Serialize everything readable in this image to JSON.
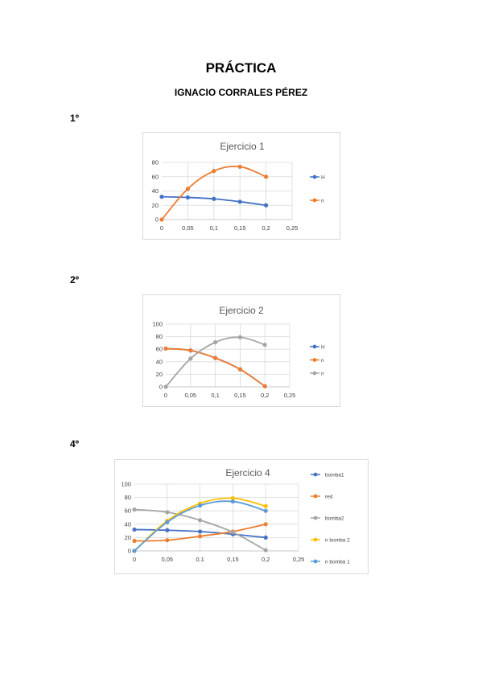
{
  "document": {
    "title": "PRÁCTICA",
    "author": "IGNACIO CORRALES PÉREZ",
    "sections": [
      "1º",
      "2º",
      "4º"
    ]
  },
  "chart_data": [
    {
      "type": "line",
      "title": "Ejercicio 1",
      "xlim": [
        0,
        0.25
      ],
      "ylim": [
        0,
        80
      ],
      "xticks": [
        "0",
        "0,05",
        "0,1",
        "0,15",
        "0,2",
        "0,25"
      ],
      "yticks": [
        "0",
        "20",
        "40",
        "60",
        "80"
      ],
      "grid": true,
      "legend": "right",
      "series": [
        {
          "name": "H",
          "color": "#4472c4",
          "x": [
            0,
            0.05,
            0.1,
            0.15,
            0.2
          ],
          "y": [
            32,
            31,
            29,
            25,
            20
          ]
        },
        {
          "name": "n",
          "color": "#ed7d31",
          "x": [
            0,
            0.05,
            0.1,
            0.15,
            0.2
          ],
          "y": [
            0,
            43,
            68,
            74,
            60
          ]
        }
      ]
    },
    {
      "type": "line",
      "title": "Ejercicio 2",
      "xlim": [
        0,
        0.25
      ],
      "ylim": [
        0,
        100
      ],
      "xticks": [
        "0",
        "0,05",
        "0,1",
        "0,15",
        "0,2",
        "0,25"
      ],
      "yticks": [
        "0",
        "20",
        "40",
        "60",
        "80",
        "100"
      ],
      "grid": true,
      "legend": "right",
      "series": [
        {
          "name": "H",
          "color": "#4472c4",
          "x": [
            0,
            0.05,
            0.1,
            0.15,
            0.2
          ],
          "y": [
            61,
            58,
            46,
            28,
            1
          ]
        },
        {
          "name": "n",
          "color": "#ed7d31",
          "x": [
            0,
            0.05,
            0.1,
            0.15,
            0.2
          ],
          "y": [
            61,
            58,
            46,
            28,
            1
          ]
        },
        {
          "name": "n",
          "color": "#a5a5a5",
          "x": [
            0,
            0.05,
            0.1,
            0.15,
            0.2
          ],
          "y": [
            0,
            45,
            71,
            79,
            67
          ]
        }
      ]
    },
    {
      "type": "line",
      "title": "Ejercicio 4",
      "xlim": [
        0,
        0.25
      ],
      "ylim": [
        0,
        100
      ],
      "xticks": [
        "0",
        "0,05",
        "0,1",
        "0,15",
        "0,2",
        "0,25"
      ],
      "yticks": [
        "0",
        "20",
        "40",
        "60",
        "80",
        "100"
      ],
      "grid": true,
      "legend": "right",
      "series": [
        {
          "name": "bomba1",
          "color": "#4472c4",
          "x": [
            0,
            0.05,
            0.1,
            0.15,
            0.2
          ],
          "y": [
            32,
            31,
            29,
            25,
            20
          ]
        },
        {
          "name": "red",
          "color": "#ed7d31",
          "x": [
            0,
            0.05,
            0.1,
            0.15,
            0.2
          ],
          "y": [
            15,
            16,
            22,
            29,
            40
          ]
        },
        {
          "name": "bomba2",
          "color": "#a5a5a5",
          "x": [
            0,
            0.05,
            0.1,
            0.15,
            0.2
          ],
          "y": [
            62,
            58,
            46,
            28,
            1
          ]
        },
        {
          "name": "n bomba 2",
          "color": "#ffc000",
          "x": [
            0,
            0.05,
            0.1,
            0.15,
            0.2
          ],
          "y": [
            0,
            45,
            71,
            79,
            67
          ]
        },
        {
          "name": "n bomba 1",
          "color": "#5b9bd5",
          "x": [
            0,
            0.05,
            0.1,
            0.15,
            0.2
          ],
          "y": [
            0,
            43,
            68,
            74,
            60
          ]
        }
      ]
    }
  ]
}
